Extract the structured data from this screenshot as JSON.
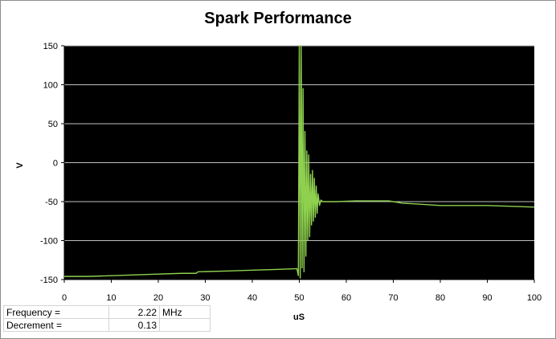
{
  "chart_data": {
    "type": "line",
    "title": "Spark Performance",
    "xlabel": "uS",
    "ylabel": "V",
    "xlim": [
      0,
      100
    ],
    "ylim": [
      -150,
      150
    ],
    "xticks": [
      0,
      10,
      20,
      30,
      40,
      50,
      60,
      70,
      80,
      90,
      100
    ],
    "yticks": [
      -150,
      -100,
      -50,
      0,
      50,
      100,
      150
    ],
    "grid": true,
    "legend": "none",
    "background_color": "#000000",
    "line_color": "#8fd14f",
    "series": [
      {
        "x": [
          0,
          5,
          10,
          15,
          20,
          25,
          28,
          28.5,
          35,
          40,
          45,
          49.5,
          49.8,
          50.0,
          50.2,
          50.4,
          50.6,
          50.8,
          51.0,
          51.2,
          51.4,
          51.6,
          51.8,
          52.0,
          52.2,
          52.4,
          52.6,
          52.8,
          53.0,
          53.2,
          53.4,
          53.6,
          53.8,
          54.0,
          54.3,
          54.6,
          55,
          58,
          62,
          66,
          69,
          70,
          72,
          75,
          80,
          85,
          90,
          95,
          100
        ],
        "y": [
          -146,
          -146,
          -145,
          -144,
          -143,
          -142,
          -142,
          -140,
          -139,
          -138,
          -137,
          -136,
          -145,
          150,
          -148,
          150,
          -135,
          95,
          -140,
          40,
          -120,
          15,
          -100,
          10,
          -95,
          -15,
          -80,
          -10,
          -75,
          -20,
          -70,
          -30,
          -65,
          -40,
          -55,
          -48,
          -50,
          -50,
          -49,
          -49,
          -49,
          -50,
          -52,
          -53,
          -55,
          -55,
          -55,
          -56,
          -57
        ]
      }
    ],
    "stats": {
      "rows": [
        {
          "label": "Frequency =",
          "value": "2.22",
          "unit": "MHz"
        },
        {
          "label": "Decrement =",
          "value": "0.13",
          "unit": ""
        }
      ]
    }
  }
}
